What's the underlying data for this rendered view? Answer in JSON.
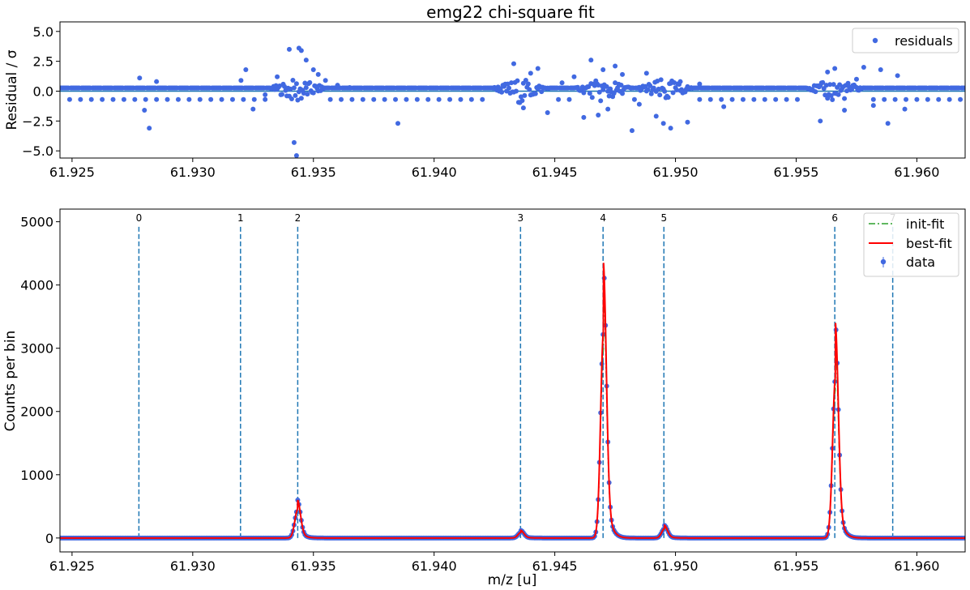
{
  "colors": {
    "data": "#4169e1",
    "zero_line": "#1f77b4",
    "peak_marker": "#1f77b4",
    "init_fit": "#2ca02c",
    "best_fit": "#ff0000"
  },
  "chart_data": [
    {
      "type": "scatter",
      "title": "emg22 chi-square fit",
      "ylabel": "Residual / σ",
      "xlabel": "",
      "xlim": [
        61.9245,
        61.962
      ],
      "ylim": [
        -5.6,
        5.8
      ],
      "x_ticks": [
        "61.925",
        "61.930",
        "61.935",
        "61.940",
        "61.945",
        "61.950",
        "61.955",
        "61.960"
      ],
      "x_tick_values": [
        61.925,
        61.93,
        61.935,
        61.94,
        61.945,
        61.95,
        61.955,
        61.96
      ],
      "y_ticks": [
        "5.0",
        "2.5",
        "0.0",
        "−2.5",
        "−5.0"
      ],
      "y_tick_values": [
        5.0,
        2.5,
        0.0,
        -2.5,
        -5.0
      ],
      "legend": {
        "placement": "top-right",
        "entries": [
          "residuals"
        ]
      },
      "baseline_levels": [
        0.27,
        -0.35,
        -0.7
      ],
      "series": [
        {
          "name": "residuals",
          "x": [
            61.9278,
            61.928,
            61.9282,
            61.9285,
            61.932,
            61.9322,
            61.9325,
            61.933,
            61.9335,
            61.934,
            61.9342,
            61.9343,
            61.9344,
            61.9345,
            61.9347,
            61.935,
            61.9352,
            61.9355,
            61.936,
            61.9365,
            61.9385,
            61.9433,
            61.9437,
            61.944,
            61.9443,
            61.9447,
            61.9453,
            61.9458,
            61.9462,
            61.9465,
            61.9468,
            61.947,
            61.9472,
            61.9475,
            61.9478,
            61.9482,
            61.9485,
            61.9488,
            61.9492,
            61.9495,
            61.9498,
            61.9502,
            61.9505,
            61.951,
            61.952,
            61.956,
            61.9563,
            61.9566,
            61.957,
            61.9575,
            61.9578,
            61.9582,
            61.9585,
            61.9588,
            61.9592,
            61.9595
          ],
          "y": [
            1.1,
            -1.6,
            -3.1,
            0.8,
            0.9,
            1.8,
            -1.5,
            -0.3,
            1.2,
            3.5,
            -4.3,
            -5.4,
            3.6,
            3.4,
            2.6,
            1.8,
            1.4,
            0.9,
            0.5,
            0.3,
            -2.7,
            2.3,
            -1.4,
            1.5,
            1.9,
            -1.8,
            0.7,
            1.2,
            -2.2,
            2.6,
            -2.0,
            1.8,
            -1.5,
            2.1,
            1.4,
            -3.3,
            -1.1,
            1.5,
            -2.1,
            -2.7,
            -3.1,
            0.8,
            -2.6,
            0.6,
            -1.3,
            -2.5,
            1.6,
            1.9,
            -1.6,
            1.0,
            2.0,
            -1.2,
            1.8,
            -2.7,
            1.3,
            -1.5
          ]
        }
      ]
    },
    {
      "type": "line",
      "title": "",
      "xlabel": "m/z [u]",
      "ylabel": "Counts per bin",
      "xlim": [
        61.9245,
        61.962
      ],
      "ylim": [
        -220,
        5200
      ],
      "x_ticks": [
        "61.925",
        "61.930",
        "61.935",
        "61.940",
        "61.945",
        "61.950",
        "61.955",
        "61.960"
      ],
      "x_tick_values": [
        61.925,
        61.93,
        61.935,
        61.94,
        61.945,
        61.95,
        61.955,
        61.96
      ],
      "y_ticks": [
        "5000",
        "4000",
        "3000",
        "2000",
        "1000",
        "0"
      ],
      "y_tick_values": [
        5000,
        4000,
        3000,
        2000,
        1000,
        0
      ],
      "legend": {
        "placement": "top-right",
        "entries": [
          "init-fit",
          "best-fit",
          "data"
        ]
      },
      "peak_markers": [
        {
          "label": "0",
          "x": 61.92777
        },
        {
          "label": "1",
          "x": 61.93198
        },
        {
          "label": "2",
          "x": 61.93435
        },
        {
          "label": "3",
          "x": 61.94358
        },
        {
          "label": "4",
          "x": 61.947
        },
        {
          "label": "5",
          "x": 61.94952
        },
        {
          "label": "6",
          "x": 61.9566
        },
        {
          "label": "7",
          "x": 61.959
        }
      ],
      "peak_marker_top": 4920,
      "peaks": [
        {
          "x": 61.93435,
          "height": 600
        },
        {
          "x": 61.9436,
          "height": 120
        },
        {
          "x": 61.94702,
          "height": 4350
        },
        {
          "x": 61.94955,
          "height": 200
        },
        {
          "x": 61.95663,
          "height": 3400
        }
      ],
      "series": [
        {
          "name": "data",
          "style": "points-with-errorbars"
        },
        {
          "name": "init-fit",
          "style": "dash-dot"
        },
        {
          "name": "best-fit",
          "style": "solid"
        }
      ]
    }
  ]
}
